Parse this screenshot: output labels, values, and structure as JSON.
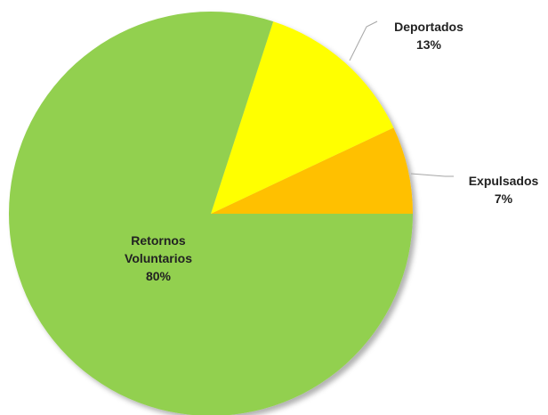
{
  "chart_data": {
    "type": "pie",
    "categories": [
      "Expulsados",
      "Deportados",
      "Retornos Voluntarios"
    ],
    "values": [
      7,
      13,
      80
    ],
    "value_labels": [
      "7%",
      "13%",
      "80%"
    ],
    "colors": [
      "#ffc000",
      "#ffff00",
      "#92d050"
    ]
  }
}
